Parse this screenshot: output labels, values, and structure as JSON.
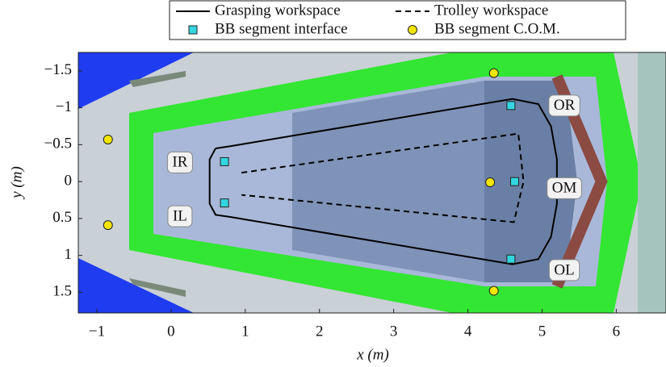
{
  "chart_data": {
    "type": "scatter",
    "xlabel": "x (m)",
    "ylabel": "y (m)",
    "xlim": [
      -1.25,
      6.67
    ],
    "ylim": [
      -1.75,
      1.78
    ],
    "y_inverted": true,
    "xticks": [
      {
        "value": -1,
        "label": "−1"
      },
      0,
      1,
      2,
      3,
      4,
      5,
      6
    ],
    "yticks": [
      {
        "value": -1.5,
        "label": "−1.5"
      },
      {
        "value": -1,
        "label": "−1"
      },
      {
        "value": -0.5,
        "label": "−0.5"
      },
      0,
      0.5,
      1,
      1.5
    ],
    "series": [
      {
        "name": "Grasping workspace",
        "color": "#000000",
        "style": "solid",
        "x": [
          0.6,
          0.8,
          4.6,
          4.95,
          5.12,
          5.2,
          5.2,
          5.12,
          4.95,
          4.6,
          0.8,
          0.6,
          0.52,
          0.52,
          0.6
        ],
        "y": [
          -0.45,
          -0.48,
          -1.12,
          -1.05,
          -0.75,
          -0.3,
          0.3,
          0.75,
          1.05,
          1.12,
          0.48,
          0.45,
          0.3,
          -0.3,
          -0.45
        ]
      },
      {
        "name": "Trolley workspace",
        "color": "#000000",
        "style": "dashed",
        "x": [
          0.95,
          4.68,
          4.75,
          4.62,
          0.95
        ],
        "y": [
          -0.12,
          -0.65,
          0.0,
          0.55,
          0.18
        ]
      },
      {
        "name": "BB segment interface",
        "color": "#33d6e0",
        "marker": "square",
        "x": [
          0.72,
          0.72,
          4.58,
          4.63,
          4.58
        ],
        "y": [
          -0.27,
          0.29,
          -1.03,
          0.0,
          1.05
        ]
      },
      {
        "name": "BB segment C.O.M.",
        "color": "#f2e600",
        "marker": "circle",
        "x": [
          -0.85,
          -0.85,
          4.35,
          4.3,
          4.35
        ],
        "y": [
          -0.57,
          0.59,
          -1.47,
          0.01,
          1.48
        ]
      }
    ],
    "annotations": [
      {
        "text": "IR",
        "x": 0.12,
        "y": -0.26
      },
      {
        "text": "IL",
        "x": 0.12,
        "y": 0.47
      },
      {
        "text": "OR",
        "x": 5.3,
        "y": -1.03
      },
      {
        "text": "OM",
        "x": 5.3,
        "y": 0.09
      },
      {
        "text": "OL",
        "x": 5.3,
        "y": 1.2
      }
    ]
  }
}
